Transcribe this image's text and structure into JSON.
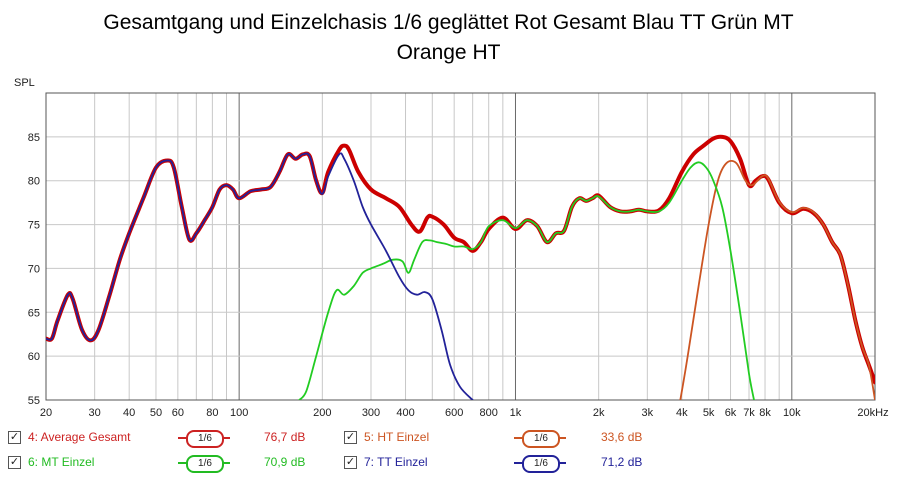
{
  "chart_data": {
    "type": "line",
    "title_line1": "Gesamtgang und Einzelchasis 1/6 geglättet Rot Gesamt Blau TT Grün MT",
    "title_line2": "Orange HT",
    "ylabel": "SPL",
    "x_unit": "Hz",
    "x_scale": "log",
    "xlim": [
      20,
      20000
    ],
    "ylim": [
      55,
      90
    ],
    "grid": true,
    "y_ticks": [
      55,
      60,
      65,
      70,
      75,
      80,
      85
    ],
    "x_ticks": [
      {
        "v": 20,
        "label": "20"
      },
      {
        "v": 30,
        "label": "30"
      },
      {
        "v": 40,
        "label": "40"
      },
      {
        "v": 50,
        "label": "50"
      },
      {
        "v": 60,
        "label": "60"
      },
      {
        "v": 80,
        "label": "80"
      },
      {
        "v": 100,
        "label": "100"
      },
      {
        "v": 200,
        "label": "200"
      },
      {
        "v": 300,
        "label": "300"
      },
      {
        "v": 400,
        "label": "400"
      },
      {
        "v": 600,
        "label": "600"
      },
      {
        "v": 800,
        "label": "800"
      },
      {
        "v": 1000,
        "label": "1k"
      },
      {
        "v": 2000,
        "label": "2k"
      },
      {
        "v": 3000,
        "label": "3k"
      },
      {
        "v": 4000,
        "label": "4k"
      },
      {
        "v": 5000,
        "label": "5k"
      },
      {
        "v": 6000,
        "label": "6k"
      },
      {
        "v": 7000,
        "label": "7k"
      },
      {
        "v": 8000,
        "label": "8k"
      },
      {
        "v": 10000,
        "label": "10k"
      },
      {
        "v": 20000,
        "label": "20kHz"
      }
    ],
    "series": [
      {
        "name": "4: Average Gesamt",
        "color": "#cc0000",
        "points": [
          [
            20,
            62
          ],
          [
            21,
            62
          ],
          [
            22,
            64
          ],
          [
            24,
            67
          ],
          [
            25,
            66.5
          ],
          [
            27,
            63
          ],
          [
            29,
            61.8
          ],
          [
            31,
            63
          ],
          [
            34,
            67
          ],
          [
            37,
            71
          ],
          [
            40,
            74
          ],
          [
            45,
            78
          ],
          [
            50,
            81.5
          ],
          [
            55,
            82.3
          ],
          [
            58,
            81.5
          ],
          [
            62,
            77
          ],
          [
            66,
            73.3
          ],
          [
            70,
            74
          ],
          [
            75,
            75.5
          ],
          [
            80,
            77
          ],
          [
            85,
            79
          ],
          [
            90,
            79.5
          ],
          [
            95,
            79
          ],
          [
            100,
            78
          ],
          [
            110,
            78.8
          ],
          [
            120,
            79
          ],
          [
            130,
            79.3
          ],
          [
            140,
            81
          ],
          [
            150,
            83
          ],
          [
            160,
            82.5
          ],
          [
            170,
            83
          ],
          [
            180,
            82.8
          ],
          [
            190,
            80
          ],
          [
            200,
            78.6
          ],
          [
            210,
            81
          ],
          [
            230,
            83.5
          ],
          [
            240,
            84
          ],
          [
            250,
            83.5
          ],
          [
            270,
            81
          ],
          [
            300,
            79
          ],
          [
            340,
            78
          ],
          [
            380,
            77
          ],
          [
            420,
            75
          ],
          [
            450,
            74.2
          ],
          [
            480,
            75.8
          ],
          [
            500,
            75.9
          ],
          [
            550,
            75
          ],
          [
            600,
            73.5
          ],
          [
            650,
            73
          ],
          [
            700,
            72
          ],
          [
            750,
            73
          ],
          [
            800,
            74.5
          ],
          [
            900,
            75.8
          ],
          [
            1000,
            74.5
          ],
          [
            1100,
            75.5
          ],
          [
            1200,
            74.8
          ],
          [
            1300,
            73
          ],
          [
            1400,
            74
          ],
          [
            1500,
            74.3
          ],
          [
            1600,
            77
          ],
          [
            1700,
            78
          ],
          [
            1800,
            77.7
          ],
          [
            1900,
            78
          ],
          [
            2000,
            78.3
          ],
          [
            2200,
            77
          ],
          [
            2400,
            76.5
          ],
          [
            2600,
            76.5
          ],
          [
            2800,
            76.7
          ],
          [
            3000,
            76.5
          ],
          [
            3300,
            76.6
          ],
          [
            3600,
            78
          ],
          [
            4000,
            81
          ],
          [
            4400,
            83
          ],
          [
            4800,
            84
          ],
          [
            5200,
            84.8
          ],
          [
            5600,
            85
          ],
          [
            6000,
            84.5
          ],
          [
            6500,
            82.5
          ],
          [
            7000,
            79.5
          ],
          [
            7400,
            80
          ],
          [
            7800,
            80.5
          ],
          [
            8200,
            80.2
          ],
          [
            9000,
            77.5
          ],
          [
            10000,
            76.3
          ],
          [
            11000,
            76.8
          ],
          [
            12000,
            76.3
          ],
          [
            13000,
            75
          ],
          [
            14000,
            73
          ],
          [
            15000,
            71.5
          ],
          [
            16000,
            68
          ],
          [
            17000,
            64
          ],
          [
            18000,
            61
          ],
          [
            19000,
            59
          ],
          [
            20000,
            57
          ]
        ]
      },
      {
        "name": "5: HT Einzel",
        "color": "#cc5522",
        "points": [
          [
            3950,
            55
          ],
          [
            4200,
            60
          ],
          [
            4600,
            68
          ],
          [
            5000,
            75
          ],
          [
            5400,
            80
          ],
          [
            5800,
            82
          ],
          [
            6300,
            82
          ],
          [
            6800,
            80
          ],
          [
            7200,
            79.5
          ],
          [
            7800,
            80.5
          ],
          [
            8200,
            80.3
          ],
          [
            9000,
            77.6
          ],
          [
            10000,
            76.4
          ],
          [
            11000,
            76.9
          ],
          [
            12000,
            76.4
          ],
          [
            13000,
            75
          ],
          [
            14000,
            73
          ],
          [
            15000,
            71.5
          ],
          [
            16000,
            68
          ],
          [
            17000,
            64
          ],
          [
            18000,
            61
          ],
          [
            19000,
            59
          ],
          [
            20000,
            55
          ]
        ]
      },
      {
        "name": "6: MT Einzel",
        "color": "#22cc22",
        "points": [
          [
            165,
            55
          ],
          [
            175,
            56
          ],
          [
            190,
            60
          ],
          [
            210,
            65
          ],
          [
            225,
            67.5
          ],
          [
            240,
            67
          ],
          [
            260,
            68
          ],
          [
            280,
            69.5
          ],
          [
            300,
            70
          ],
          [
            330,
            70.5
          ],
          [
            360,
            71
          ],
          [
            390,
            70.8
          ],
          [
            410,
            69.5
          ],
          [
            430,
            71
          ],
          [
            460,
            73
          ],
          [
            490,
            73.2
          ],
          [
            520,
            73
          ],
          [
            560,
            72.8
          ],
          [
            600,
            72.5
          ],
          [
            650,
            72.5
          ],
          [
            700,
            72.2
          ],
          [
            750,
            73
          ],
          [
            800,
            74.8
          ],
          [
            900,
            75.5
          ],
          [
            1000,
            74.6
          ],
          [
            1100,
            75.5
          ],
          [
            1200,
            74.8
          ],
          [
            1300,
            73
          ],
          [
            1400,
            74
          ],
          [
            1500,
            74.3
          ],
          [
            1600,
            77
          ],
          [
            1700,
            78
          ],
          [
            1800,
            77.7
          ],
          [
            1900,
            78
          ],
          [
            2000,
            78.2
          ],
          [
            2200,
            77
          ],
          [
            2400,
            76.5
          ],
          [
            2600,
            76.5
          ],
          [
            2800,
            76.7
          ],
          [
            3000,
            76.5
          ],
          [
            3300,
            76.5
          ],
          [
            3600,
            77.5
          ],
          [
            4000,
            80
          ],
          [
            4300,
            81.5
          ],
          [
            4600,
            82.1
          ],
          [
            4900,
            81.5
          ],
          [
            5200,
            80
          ],
          [
            5600,
            77
          ],
          [
            6000,
            72
          ],
          [
            6500,
            65
          ],
          [
            7000,
            58
          ],
          [
            7300,
            55
          ]
        ]
      },
      {
        "name": "7: TT Einzel",
        "color": "#222299",
        "points": [
          [
            20,
            62
          ],
          [
            21,
            62
          ],
          [
            22,
            64
          ],
          [
            24,
            67
          ],
          [
            25,
            66.5
          ],
          [
            27,
            63
          ],
          [
            29,
            61.8
          ],
          [
            31,
            63
          ],
          [
            34,
            67
          ],
          [
            37,
            71
          ],
          [
            40,
            74
          ],
          [
            45,
            78
          ],
          [
            50,
            81.5
          ],
          [
            55,
            82.3
          ],
          [
            58,
            81.5
          ],
          [
            62,
            77
          ],
          [
            66,
            73.3
          ],
          [
            70,
            74
          ],
          [
            75,
            75.5
          ],
          [
            80,
            77
          ],
          [
            85,
            79
          ],
          [
            90,
            79.5
          ],
          [
            95,
            79
          ],
          [
            100,
            78
          ],
          [
            110,
            78.8
          ],
          [
            120,
            79
          ],
          [
            130,
            79.3
          ],
          [
            140,
            81
          ],
          [
            150,
            83
          ],
          [
            160,
            82.5
          ],
          [
            170,
            83
          ],
          [
            180,
            82.8
          ],
          [
            190,
            80
          ],
          [
            200,
            78.5
          ],
          [
            210,
            80.5
          ],
          [
            230,
            83
          ],
          [
            240,
            82.5
          ],
          [
            260,
            80
          ],
          [
            280,
            77
          ],
          [
            300,
            75
          ],
          [
            340,
            72
          ],
          [
            380,
            69
          ],
          [
            410,
            67.5
          ],
          [
            440,
            67
          ],
          [
            470,
            67.3
          ],
          [
            500,
            66.5
          ],
          [
            540,
            63
          ],
          [
            580,
            59
          ],
          [
            630,
            56.5
          ],
          [
            700,
            55
          ]
        ]
      }
    ],
    "legend": [
      {
        "name": "4: Average Gesamt",
        "smoothing": "1/6",
        "value": "76,7 dB",
        "color": "#cc2222",
        "checked": "✓"
      },
      {
        "name": "5: HT Einzel",
        "smoothing": "1/6",
        "value": "33,6 dB",
        "color": "#cc5522",
        "checked": "✓"
      },
      {
        "name": "6: MT Einzel",
        "smoothing": "1/6",
        "value": "70,9 dB",
        "color": "#22bb22",
        "checked": "✓"
      },
      {
        "name": "7: TT Einzel",
        "smoothing": "1/6",
        "value": "71,2 dB",
        "color": "#222299",
        "checked": "✓"
      }
    ]
  }
}
